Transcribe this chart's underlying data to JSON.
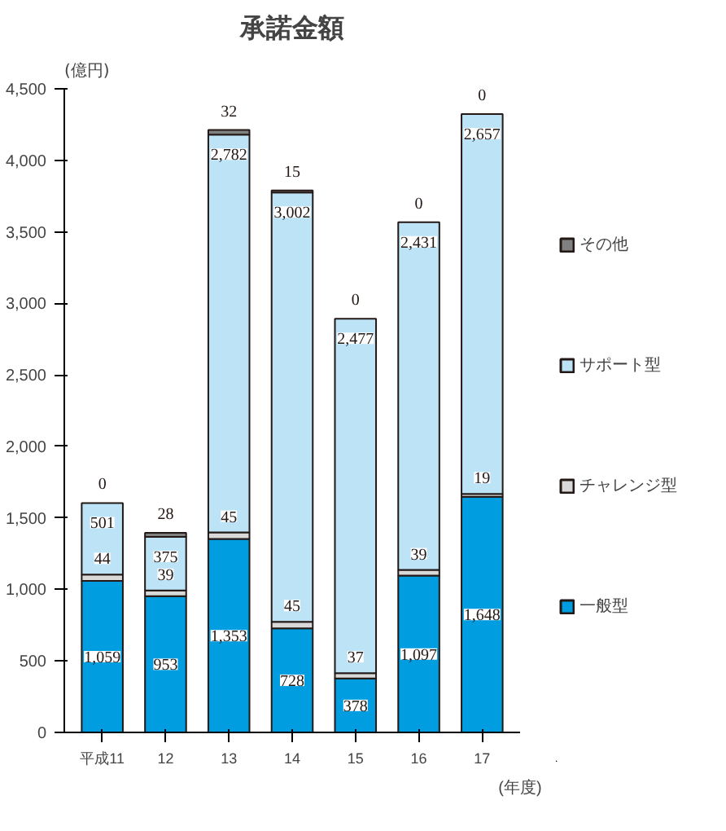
{
  "chart_data": {
    "type": "bar",
    "title": "承諾金額",
    "ylabel": "(億円)",
    "xlabel": "(年度)",
    "stacked": true,
    "categories": [
      "平成11",
      "12",
      "13",
      "14",
      "15",
      "16",
      "17"
    ],
    "series": [
      {
        "name": "一般型",
        "color": "#009de0",
        "values": [
          1059,
          953,
          1353,
          728,
          378,
          1097,
          1648
        ],
        "value_labels": [
          "1,059",
          "953",
          "1,353",
          "728",
          "378",
          "1,097",
          "1,648"
        ]
      },
      {
        "name": "チャレンジ型",
        "color": "#d9d9d9",
        "values": [
          44,
          39,
          45,
          45,
          37,
          39,
          19
        ],
        "value_labels": [
          "44",
          "39",
          "45",
          "45",
          "37",
          "39",
          "19"
        ]
      },
      {
        "name": "サポート型",
        "color": "#bde3f7",
        "values": [
          501,
          375,
          2782,
          3002,
          2477,
          2431,
          2657
        ],
        "value_labels": [
          "501",
          "375",
          "2,782",
          "3,002",
          "2,477",
          "2,431",
          "2,657"
        ]
      },
      {
        "name": "その他",
        "color": "#808080",
        "values": [
          0,
          28,
          32,
          15,
          0,
          0,
          0
        ],
        "value_labels": [
          "0",
          "28",
          "32",
          "15",
          "0",
          "0",
          "0"
        ]
      }
    ],
    "ylim": [
      0,
      4500
    ],
    "yticks": [
      0,
      500,
      {
        "value": 1000,
        "label": "1,000"
      },
      {
        "value": 1500,
        "label": "1,500"
      },
      {
        "value": 2000,
        "label": "2,000"
      },
      {
        "value": 2500,
        "label": "2,500"
      },
      {
        "value": 3000,
        "label": "3,000"
      },
      {
        "value": 3500,
        "label": "3,500"
      },
      {
        "value": 4000,
        "label": "4,000"
      },
      {
        "value": 4500,
        "label": "4,500"
      }
    ],
    "legend": "right"
  }
}
